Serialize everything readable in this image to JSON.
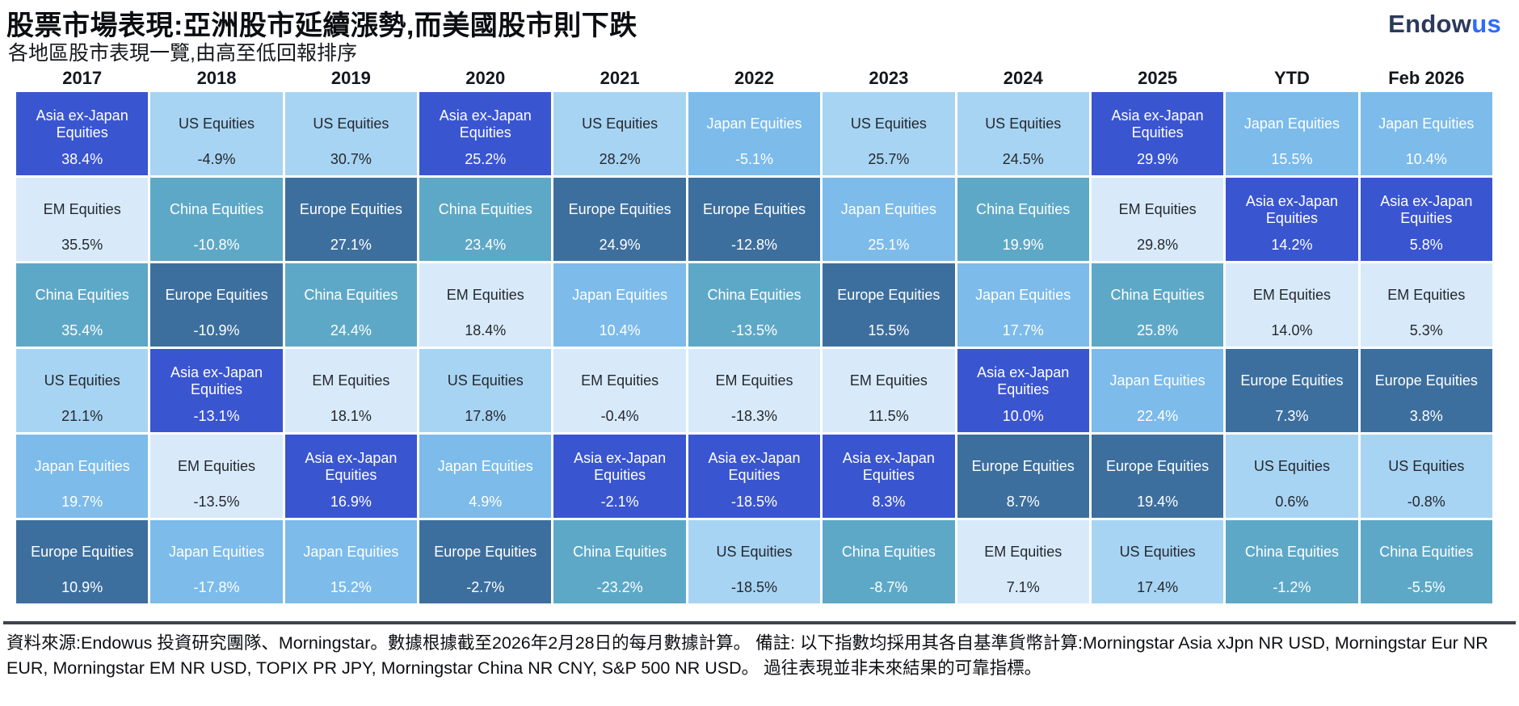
{
  "header": {
    "title": "股票市場表現:亞洲股市延續漲勢,而美國股市則下跌",
    "subtitle": "各地區股市表現一覽,由高至低回報排序",
    "logo_part1": "Endow",
    "logo_part2": "us"
  },
  "palette": {
    "asia": {
      "bg": "#3a55d0",
      "text": "#ffffff"
    },
    "em": {
      "bg": "#d8eafa",
      "text": "#25282e"
    },
    "china": {
      "bg": "#5ea8c7",
      "text": "#ffffff"
    },
    "us": {
      "bg": "#a8d4f3",
      "text": "#25282e"
    },
    "japan": {
      "bg": "#7cbbea",
      "text": "#ffffff"
    },
    "europe": {
      "bg": "#3d6f9e",
      "text": "#ffffff"
    }
  },
  "chart_data": {
    "type": "table",
    "title": "股票市場表現:亞洲股市延續漲勢,而美國股市則下跌",
    "subtitle": "各地區股市表現一覽,由高至低回報排序",
    "layout_hint": "periodic-table-of-returns; each column ranked high to low",
    "categories_legend": {
      "asia": "Asia ex-Japan Equities",
      "em": "EM Equities",
      "china": "China Equities",
      "us": "US Equities",
      "japan": "Japan Equities",
      "europe": "Europe Equities"
    },
    "columns": [
      {
        "label": "2017",
        "cells": [
          {
            "asset": "Asia ex-Japan Equities",
            "value": "38.4%",
            "category": "asia"
          },
          {
            "asset": "EM Equities",
            "value": "35.5%",
            "category": "em"
          },
          {
            "asset": "China Equities",
            "value": "35.4%",
            "category": "china"
          },
          {
            "asset": "US Equities",
            "value": "21.1%",
            "category": "us"
          },
          {
            "asset": "Japan Equities",
            "value": "19.7%",
            "category": "japan"
          },
          {
            "asset": "Europe Equities",
            "value": "10.9%",
            "category": "europe"
          }
        ]
      },
      {
        "label": "2018",
        "cells": [
          {
            "asset": "US Equities",
            "value": "-4.9%",
            "category": "us"
          },
          {
            "asset": "China Equities",
            "value": "-10.8%",
            "category": "china"
          },
          {
            "asset": "Europe Equities",
            "value": "-10.9%",
            "category": "europe"
          },
          {
            "asset": "Asia ex-Japan Equities",
            "value": "-13.1%",
            "category": "asia"
          },
          {
            "asset": "EM Equities",
            "value": "-13.5%",
            "category": "em"
          },
          {
            "asset": "Japan Equities",
            "value": "-17.8%",
            "category": "japan"
          }
        ]
      },
      {
        "label": "2019",
        "cells": [
          {
            "asset": "US Equities",
            "value": "30.7%",
            "category": "us"
          },
          {
            "asset": "Europe Equities",
            "value": "27.1%",
            "category": "europe"
          },
          {
            "asset": "China Equities",
            "value": "24.4%",
            "category": "china"
          },
          {
            "asset": "EM Equities",
            "value": "18.1%",
            "category": "em"
          },
          {
            "asset": "Asia ex-Japan Equities",
            "value": "16.9%",
            "category": "asia"
          },
          {
            "asset": "Japan Equities",
            "value": "15.2%",
            "category": "japan"
          }
        ]
      },
      {
        "label": "2020",
        "cells": [
          {
            "asset": "Asia ex-Japan Equities",
            "value": "25.2%",
            "category": "asia"
          },
          {
            "asset": "China Equities",
            "value": "23.4%",
            "category": "china"
          },
          {
            "asset": "EM Equities",
            "value": "18.4%",
            "category": "em"
          },
          {
            "asset": "US Equities",
            "value": "17.8%",
            "category": "us"
          },
          {
            "asset": "Japan Equities",
            "value": "4.9%",
            "category": "japan"
          },
          {
            "asset": "Europe Equities",
            "value": "-2.7%",
            "category": "europe"
          }
        ]
      },
      {
        "label": "2021",
        "cells": [
          {
            "asset": "US Equities",
            "value": "28.2%",
            "category": "us"
          },
          {
            "asset": "Europe Equities",
            "value": "24.9%",
            "category": "europe"
          },
          {
            "asset": "Japan Equities",
            "value": "10.4%",
            "category": "japan"
          },
          {
            "asset": "EM Equities",
            "value": "-0.4%",
            "category": "em"
          },
          {
            "asset": "Asia ex-Japan Equities",
            "value": "-2.1%",
            "category": "asia"
          },
          {
            "asset": "China Equities",
            "value": "-23.2%",
            "category": "china"
          }
        ]
      },
      {
        "label": "2022",
        "cells": [
          {
            "asset": "Japan Equities",
            "value": "-5.1%",
            "category": "japan"
          },
          {
            "asset": "Europe Equities",
            "value": "-12.8%",
            "category": "europe"
          },
          {
            "asset": "China Equities",
            "value": "-13.5%",
            "category": "china"
          },
          {
            "asset": "EM Equities",
            "value": "-18.3%",
            "category": "em"
          },
          {
            "asset": "Asia ex-Japan Equities",
            "value": "-18.5%",
            "category": "asia"
          },
          {
            "asset": "US Equities",
            "value": "-18.5%",
            "category": "us"
          }
        ]
      },
      {
        "label": "2023",
        "cells": [
          {
            "asset": "US Equities",
            "value": "25.7%",
            "category": "us"
          },
          {
            "asset": "Japan Equities",
            "value": "25.1%",
            "category": "japan"
          },
          {
            "asset": "Europe Equities",
            "value": "15.5%",
            "category": "europe"
          },
          {
            "asset": "EM Equities",
            "value": "11.5%",
            "category": "em"
          },
          {
            "asset": "Asia ex-Japan Equities",
            "value": "8.3%",
            "category": "asia"
          },
          {
            "asset": "China Equities",
            "value": "-8.7%",
            "category": "china"
          }
        ]
      },
      {
        "label": "2024",
        "cells": [
          {
            "asset": "US Equities",
            "value": "24.5%",
            "category": "us"
          },
          {
            "asset": "China Equities",
            "value": "19.9%",
            "category": "china"
          },
          {
            "asset": "Japan Equities",
            "value": "17.7%",
            "category": "japan"
          },
          {
            "asset": "Asia ex-Japan Equities",
            "value": "10.0%",
            "category": "asia"
          },
          {
            "asset": "Europe Equities",
            "value": "8.7%",
            "category": "europe"
          },
          {
            "asset": "EM Equities",
            "value": "7.1%",
            "category": "em"
          }
        ]
      },
      {
        "label": "2025",
        "cells": [
          {
            "asset": "Asia ex-Japan Equities",
            "value": "29.9%",
            "category": "asia"
          },
          {
            "asset": "EM Equities",
            "value": "29.8%",
            "category": "em"
          },
          {
            "asset": "China Equities",
            "value": "25.8%",
            "category": "china"
          },
          {
            "asset": "Japan Equities",
            "value": "22.4%",
            "category": "japan"
          },
          {
            "asset": "Europe Equities",
            "value": "19.4%",
            "category": "europe"
          },
          {
            "asset": "US Equities",
            "value": "17.4%",
            "category": "us"
          }
        ]
      },
      {
        "label": "YTD",
        "cells": [
          {
            "asset": "Japan Equities",
            "value": "15.5%",
            "category": "japan"
          },
          {
            "asset": "Asia ex-Japan Equities",
            "value": "14.2%",
            "category": "asia"
          },
          {
            "asset": "EM Equities",
            "value": "14.0%",
            "category": "em"
          },
          {
            "asset": "Europe Equities",
            "value": "7.3%",
            "category": "europe"
          },
          {
            "asset": "US Equities",
            "value": "0.6%",
            "category": "us"
          },
          {
            "asset": "China Equities",
            "value": "-1.2%",
            "category": "china"
          }
        ]
      },
      {
        "label": "Feb 2026",
        "cells": [
          {
            "asset": "Japan Equities",
            "value": "10.4%",
            "category": "japan"
          },
          {
            "asset": "Asia ex-Japan Equities",
            "value": "5.8%",
            "category": "asia"
          },
          {
            "asset": "EM Equities",
            "value": "5.3%",
            "category": "em"
          },
          {
            "asset": "Europe Equities",
            "value": "3.8%",
            "category": "europe"
          },
          {
            "asset": "US Equities",
            "value": "-0.8%",
            "category": "us"
          },
          {
            "asset": "China Equities",
            "value": "-5.5%",
            "category": "china"
          }
        ]
      }
    ]
  },
  "footer": {
    "note": "資料來源:Endowus 投資研究團隊、Morningstar。數據根據截至2026年2月28日的每月數據計算。 備註: 以下指數均採用其各自基準貨幣計算:Morningstar Asia xJpn NR USD, Morningstar Eur NR EUR, Morningstar EM NR USD, TOPIX PR JPY, Morningstar China NR CNY, S&P 500 NR USD。 過往表現並非未來結果的可靠指標。"
  }
}
